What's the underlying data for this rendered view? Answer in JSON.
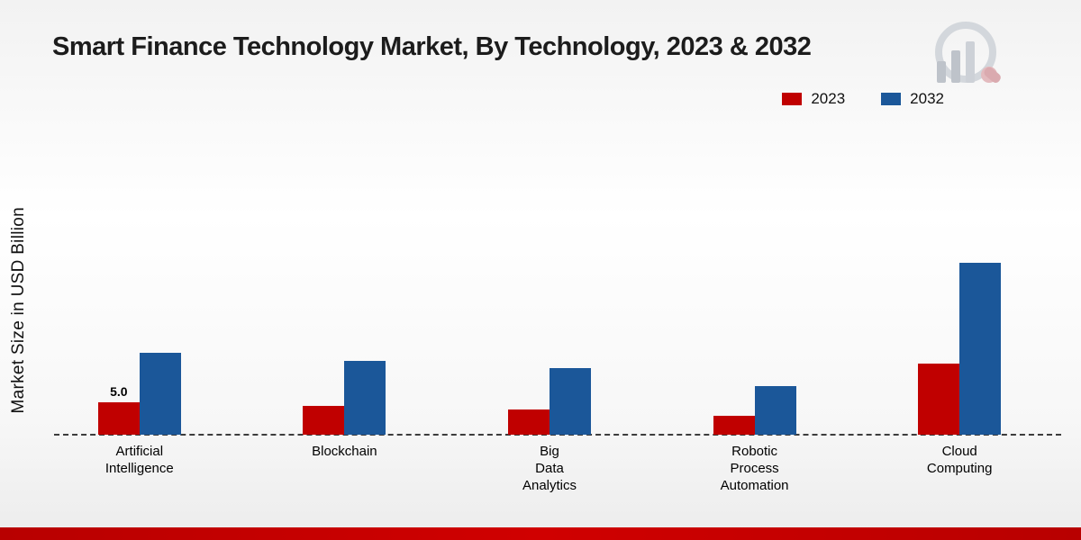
{
  "page": {
    "title": "Smart Finance Technology Market, By Technology, 2023 & 2032",
    "ylabel": "Market Size in USD Billion"
  },
  "colors": {
    "series_2023": "#c00000",
    "series_2032": "#1b5799",
    "bottom_strip": "#c00000",
    "baseline": "#3c3c3c"
  },
  "chart_data": {
    "type": "bar",
    "title": "Smart Finance Technology Market, By Technology, 2023 & 2032",
    "ylabel": "Market Size in USD Billion",
    "xlabel": "",
    "ylim": [
      0,
      30
    ],
    "grid": false,
    "legend_position": "top-right",
    "baseline_style": "dashed",
    "categories": [
      "Artificial Intelligence",
      "Blockchain",
      "Big Data Analytics",
      "Robotic Process Automation",
      "Cloud Computing"
    ],
    "category_lines": [
      [
        "Artificial",
        "Intelligence"
      ],
      [
        "Blockchain"
      ],
      [
        "Big",
        "Data",
        "Analytics"
      ],
      [
        "Robotic",
        "Process",
        "Automation"
      ],
      [
        "Cloud",
        "Computing"
      ]
    ],
    "series": [
      {
        "name": "2023",
        "color": "#c00000",
        "values": [
          5.0,
          4.4,
          3.9,
          2.9,
          11.0
        ]
      },
      {
        "name": "2032",
        "color": "#1b5799",
        "values": [
          12.6,
          11.4,
          10.3,
          7.5,
          26.5
        ]
      }
    ],
    "data_labels": [
      {
        "series": "2023",
        "category": "Artificial Intelligence",
        "value": "5.0"
      }
    ]
  }
}
